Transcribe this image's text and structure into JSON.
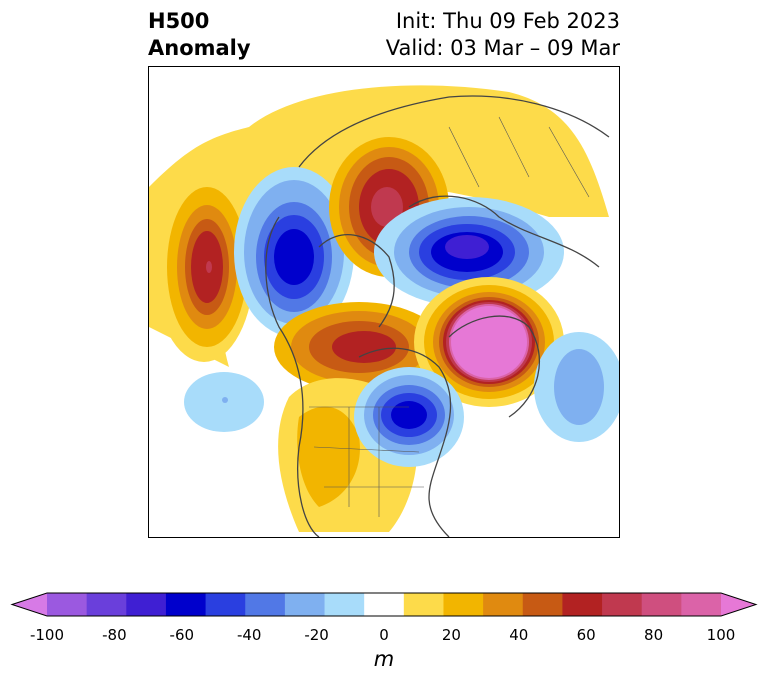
{
  "title": {
    "left_line1": "H500",
    "left_line2": "Anomaly",
    "right_line1": "Init: Thu 09 Feb 2023",
    "right_line2": "Valid: 03 Mar – 09 Mar"
  },
  "colorbar": {
    "label": "m",
    "ticks": [
      "-100",
      "-80",
      "-60",
      "-40",
      "-20",
      "0",
      "20",
      "40",
      "60",
      "80",
      "100"
    ],
    "colors": [
      "#d77ae6",
      "#9b59e0",
      "#6a3fdb",
      "#3f1fd3",
      "#0000cc",
      "#2a3fe0",
      "#5178e6",
      "#7fb0f0",
      "#a8dcfa",
      "#ffffff",
      "#fddb4a",
      "#f2b500",
      "#e08a10",
      "#c75a14",
      "#b22222",
      "#c0394f",
      "#cf4f7f",
      "#db63a8",
      "#e678d6"
    ]
  },
  "map": {
    "projection": "north-polar-stereographic",
    "features": [
      "coastlines",
      "country-borders",
      "us-state-borders"
    ],
    "anomalies": [
      {
        "name": "north-pacific-ridge",
        "sign": "positive",
        "peak_m": 60
      },
      {
        "name": "gulf-of-alaska-trough",
        "sign": "negative",
        "peak_m": -60
      },
      {
        "name": "east-asia-ridge",
        "sign": "positive",
        "peak_m": 60
      },
      {
        "name": "siberia-trough",
        "sign": "negative",
        "peak_m": -70
      },
      {
        "name": "greenland-block",
        "sign": "positive",
        "peak_m": 110
      },
      {
        "name": "north-canada-ridge",
        "sign": "positive",
        "peak_m": 50
      },
      {
        "name": "northeast-us-trough",
        "sign": "negative",
        "peak_m": -60
      },
      {
        "name": "subtropical-pacific-trough",
        "sign": "negative",
        "peak_m": -20
      },
      {
        "name": "atlantic-trough",
        "sign": "negative",
        "peak_m": -30
      }
    ]
  }
}
